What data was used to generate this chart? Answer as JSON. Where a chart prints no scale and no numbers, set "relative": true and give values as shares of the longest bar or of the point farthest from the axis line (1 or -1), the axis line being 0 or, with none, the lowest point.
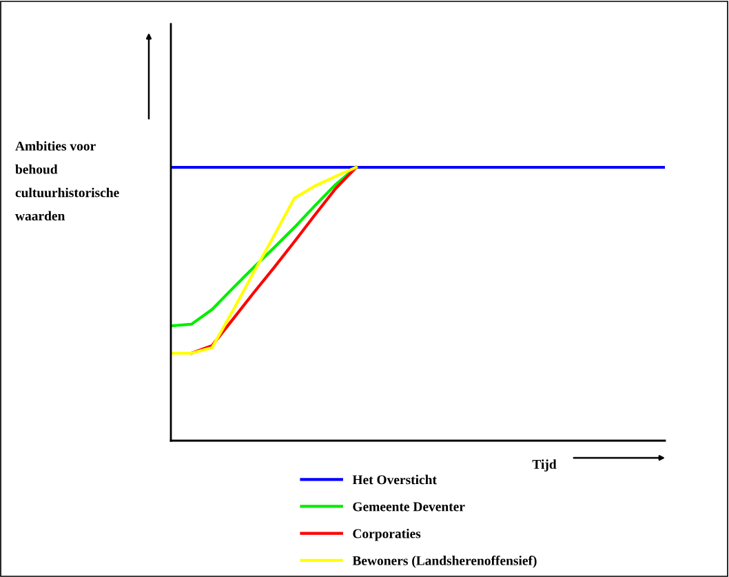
{
  "chart_data": {
    "type": "line",
    "relative": true,
    "xlabel": "Tijd",
    "ylabel": "Ambities voor\nbehoud\ncultuurhistorische\nwaarden",
    "categories": [
      null,
      null,
      null,
      null,
      null,
      null,
      null,
      null,
      null,
      null,
      null,
      null,
      null,
      null,
      null,
      null,
      null,
      null,
      null,
      null,
      null,
      null,
      null,
      null,
      null
    ],
    "series": [
      {
        "name": "Het Oversticht",
        "color": "#0000ff",
        "values": [
          1,
          1,
          1,
          1,
          1,
          1,
          1,
          1,
          1,
          1,
          1,
          1,
          1,
          1,
          1,
          1,
          1,
          1,
          1,
          1,
          1,
          1,
          1,
          1,
          1
        ]
      },
      {
        "name": "Gemeente Deventer",
        "color": "#00ee00",
        "values": [
          0.42,
          0.426,
          0.48,
          0.557,
          0.632,
          0.705,
          0.78,
          0.86,
          0.937,
          1,
          null,
          null,
          null,
          null,
          null,
          null,
          null,
          null,
          null,
          null,
          null,
          null,
          null,
          null,
          null
        ]
      },
      {
        "name": "Corporaties",
        "color": "#ff0000",
        "values": [
          null,
          0.32,
          0.348,
          0.443,
          0.539,
          0.632,
          0.728,
          0.826,
          0.922,
          1,
          null,
          null,
          null,
          null,
          null,
          null,
          null,
          null,
          null,
          null,
          null,
          null,
          null,
          null,
          null
        ]
      },
      {
        "name": "Bewoners (Landsherenoffensief)",
        "color": "#ffff00",
        "values": [
          0.32,
          0.32,
          0.34,
          0.474,
          0.612,
          0.748,
          0.887,
          0.932,
          0.967,
          1,
          null,
          null,
          null,
          null,
          null,
          null,
          null,
          null,
          null,
          null,
          null,
          null,
          null,
          null,
          null
        ]
      }
    ],
    "legend": "bottom",
    "grid": false,
    "marker": "none",
    "line_style": "solid"
  }
}
